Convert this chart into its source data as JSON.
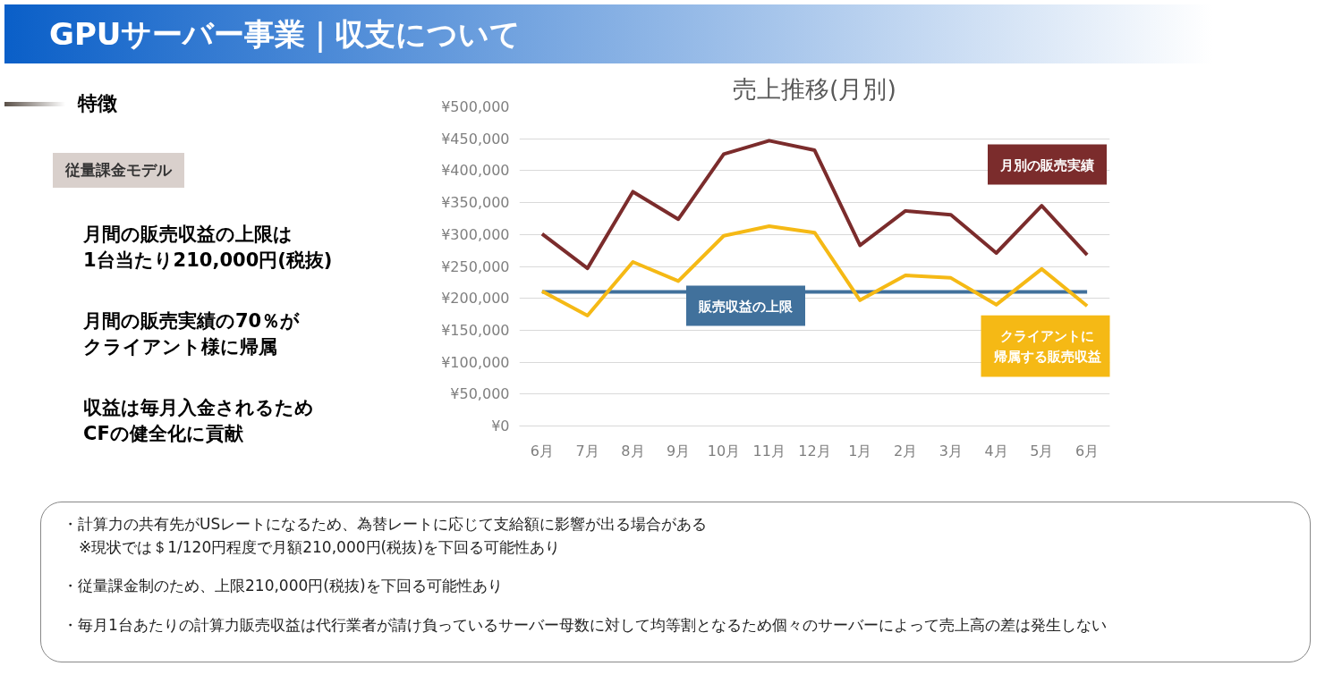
{
  "chart_data": {
    "type": "line",
    "title": "売上推移(月別)",
    "categories": [
      "6月",
      "7月",
      "8月",
      "9月",
      "10月",
      "11月",
      "12月",
      "1月",
      "2月",
      "3月",
      "4月",
      "5月",
      "6月"
    ],
    "series": [
      {
        "name": "月別の販売実績",
        "color": "#7b2c2c",
        "values": [
          301000,
          247000,
          367000,
          324000,
          426000,
          447000,
          432000,
          283000,
          337000,
          331000,
          271000,
          345000,
          268000
        ]
      },
      {
        "name": "クライアントに帰属する販売収益",
        "color": "#f5b915",
        "values": [
          211000,
          173000,
          257000,
          227000,
          298000,
          313000,
          303000,
          197000,
          236000,
          232000,
          190000,
          246000,
          188000
        ]
      }
    ],
    "ref_lines": [
      {
        "axis": "y",
        "value": 210000,
        "label": "販売収益の上限",
        "color": "#41719c"
      }
    ],
    "ylim": [
      0,
      500000
    ],
    "yticks": [
      {
        "value": 0,
        "label": "¥0"
      },
      {
        "value": 50000,
        "label": "¥50,000"
      },
      {
        "value": 100000,
        "label": "¥100,000"
      },
      {
        "value": 150000,
        "label": "¥150,000"
      },
      {
        "value": 200000,
        "label": "¥200,000"
      },
      {
        "value": 250000,
        "label": "¥250,000"
      },
      {
        "value": 300000,
        "label": "¥300,000"
      },
      {
        "value": 350000,
        "label": "¥350,000"
      },
      {
        "value": 400000,
        "label": "¥400,000"
      },
      {
        "value": 450000,
        "label": "¥450,000"
      },
      {
        "value": 500000,
        "label": "¥500,000"
      }
    ],
    "grid": "y",
    "legend": false,
    "marker": "none",
    "line_style": "solid",
    "annotations": [
      "GPUサーバー事業｜収支について",
      "特徴",
      "従量課金モデル",
      "月間の販売収益の上限は",
      "1台当たり210,000円(税抜)",
      "月間の販売実績の70％が",
      "クライアント様に帰属",
      "収益は毎月入金されるため",
      "CFの健全化に貢献",
      "・計算力の共有先がUSレートになるため、為替レートに応じて支給額に影響が出る場合がある",
      "※現状では＄1/120円程度で月額210,000円(税抜)を下回る可能性あり",
      "・従量課金制のため、上限210,000円(税抜)を下回る可能性あり",
      "・毎月1台あたりの計算力販売収益は代行業者が請け負っているサーバー母数に対して均等割となるため個々のサーバーによって売上高の差は発生しない"
    ]
  }
}
